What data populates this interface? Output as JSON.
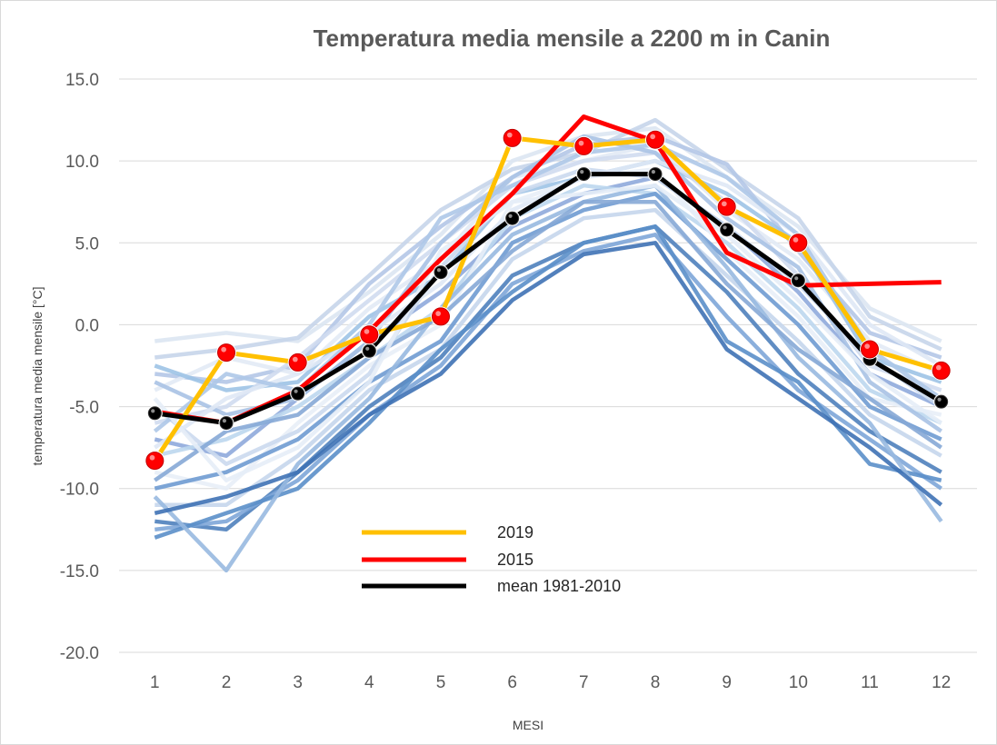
{
  "chart_data": {
    "type": "line",
    "title": "Temperatura media mensile a 2200 m in Canin",
    "xlabel": "MESI",
    "ylabel": "temperatura media mensile [°C]",
    "ylim": [
      -20,
      15
    ],
    "yticks": [
      "15.0",
      "10.0",
      "5.0",
      "0.0",
      "-5.0",
      "-10.0",
      "-15.0",
      "-20.0"
    ],
    "ytick_values": [
      15,
      10,
      5,
      0,
      -5,
      -10,
      -15,
      -20
    ],
    "categories": [
      "1",
      "2",
      "3",
      "4",
      "5",
      "6",
      "7",
      "8",
      "9",
      "10",
      "11",
      "12"
    ],
    "grid": true,
    "legend_position": "lower-center",
    "highlight_series": [
      {
        "name": "2019",
        "color": "#ffc000",
        "markers": true,
        "values": [
          -8.3,
          -1.7,
          -2.3,
          -0.6,
          0.5,
          11.4,
          10.9,
          11.3,
          7.2,
          5.0,
          -1.5,
          -2.8
        ]
      },
      {
        "name": "2015",
        "color": "#ff0000",
        "markers": false,
        "values": [
          -5.3,
          -6.0,
          -4.0,
          -0.4,
          4.0,
          8.0,
          12.7,
          11.2,
          4.4,
          2.4,
          2.5,
          2.6
        ]
      },
      {
        "name": "mean 1981-2010",
        "color": "#000000",
        "markers": true,
        "values": [
          -5.4,
          -6.0,
          -4.2,
          -1.6,
          3.2,
          6.5,
          9.2,
          9.2,
          5.8,
          2.7,
          -2.1,
          -4.7
        ]
      }
    ],
    "background_series": [
      {
        "color": "#dce6f2",
        "values": [
          -1.0,
          -0.5,
          -1.0,
          2.0,
          5.5,
          10.0,
          11.5,
          12.0,
          9.0,
          6.0,
          1.0,
          -1.0
        ]
      },
      {
        "color": "#c6d5ea",
        "values": [
          -2.0,
          -1.5,
          -0.8,
          3.0,
          7.0,
          9.5,
          10.5,
          12.5,
          9.5,
          6.5,
          0.5,
          -1.5
        ]
      },
      {
        "color": "#b4c7e7",
        "values": [
          -3.0,
          -3.5,
          -2.5,
          2.5,
          6.0,
          9.0,
          11.0,
          11.5,
          9.8,
          4.5,
          -0.5,
          -2.0
        ]
      },
      {
        "color": "#e2eaf5",
        "values": [
          -4.0,
          -2.0,
          -3.0,
          1.0,
          4.0,
          9.0,
          10.0,
          11.0,
          7.0,
          4.0,
          -1.0,
          -3.0
        ]
      },
      {
        "color": "#9dc3e6",
        "values": [
          -2.5,
          -4.0,
          -3.5,
          0.5,
          3.0,
          8.0,
          9.0,
          10.0,
          8.0,
          5.0,
          -2.0,
          -3.5
        ]
      },
      {
        "color": "#d0dcef",
        "values": [
          -6.0,
          -5.0,
          -2.0,
          1.5,
          5.0,
          8.5,
          10.0,
          10.5,
          7.5,
          3.0,
          -2.5,
          -4.0
        ]
      },
      {
        "color": "#8faadc",
        "values": [
          -7.0,
          -8.0,
          -4.5,
          -1.0,
          2.0,
          6.0,
          8.0,
          9.0,
          6.0,
          2.0,
          -3.0,
          -5.0
        ]
      },
      {
        "color": "#bdd7ee",
        "values": [
          -8.0,
          -7.0,
          -5.0,
          -2.0,
          1.0,
          6.5,
          8.5,
          8.0,
          5.0,
          1.0,
          -4.0,
          -6.0
        ]
      },
      {
        "color": "#e8eef7",
        "values": [
          -9.0,
          -10.0,
          -6.0,
          -2.5,
          0.0,
          7.5,
          9.0,
          9.5,
          4.5,
          0.5,
          -4.5,
          -5.5
        ]
      },
      {
        "color": "#6f9bd1",
        "values": [
          -10.0,
          -9.0,
          -7.0,
          -3.5,
          -1.0,
          5.0,
          7.0,
          8.0,
          4.0,
          0.0,
          -5.0,
          -7.0
        ]
      },
      {
        "color": "#c5d6ec",
        "values": [
          -11.0,
          -11.0,
          -8.0,
          -4.0,
          -1.5,
          4.0,
          6.5,
          7.0,
          3.0,
          -1.0,
          -5.5,
          -8.0
        ]
      },
      {
        "color": "#4f81bd",
        "values": [
          -12.0,
          -12.5,
          -9.0,
          -5.0,
          -2.0,
          3.0,
          5.0,
          6.0,
          2.0,
          -3.0,
          -6.5,
          -9.0
        ]
      },
      {
        "color": "#7ea6d8",
        "values": [
          -12.5,
          -12.0,
          -9.5,
          -5.5,
          -2.5,
          2.5,
          4.5,
          5.5,
          0.5,
          -4.0,
          -7.0,
          -10.0
        ]
      },
      {
        "color": "#5b8fc9",
        "values": [
          -13.0,
          -11.5,
          -10.0,
          -6.0,
          -1.5,
          2.0,
          5.0,
          6.0,
          -1.0,
          -3.5,
          -8.5,
          -9.5
        ]
      },
      {
        "color": "#98b9e0",
        "values": [
          -10.5,
          -15.0,
          -8.5,
          -4.5,
          1.0,
          5.5,
          7.5,
          8.5,
          3.5,
          -2.0,
          -6.0,
          -12.0
        ]
      },
      {
        "color": "#a9c2e4",
        "values": [
          -3.5,
          -5.5,
          -4.5,
          -1.0,
          5.0,
          9.0,
          11.5,
          10.5,
          6.5,
          3.5,
          -3.5,
          -6.5
        ]
      },
      {
        "color": "#cbd9ee",
        "values": [
          -5.0,
          -8.5,
          -6.5,
          -3.0,
          3.5,
          8.0,
          9.5,
          9.0,
          6.0,
          2.5,
          -2.0,
          -5.0
        ]
      },
      {
        "color": "#dfe8f5",
        "values": [
          -7.5,
          -4.5,
          -3.0,
          -0.5,
          2.5,
          7.0,
          9.0,
          10.0,
          8.5,
          5.5,
          0.0,
          -2.5
        ]
      },
      {
        "color": "#86a8d6",
        "values": [
          -9.5,
          -6.5,
          -5.5,
          -2.0,
          0.5,
          4.5,
          7.5,
          7.5,
          2.5,
          -1.5,
          -4.5,
          -7.5
        ]
      },
      {
        "color": "#aec8e8",
        "values": [
          -6.5,
          -3.0,
          -4.0,
          0.0,
          6.5,
          8.5,
          10.5,
          11.0,
          9.0,
          5.5,
          -1.5,
          -4.5
        ]
      },
      {
        "color": "#3f72b5",
        "values": [
          -11.5,
          -10.5,
          -9.0,
          -5.5,
          -3.0,
          1.5,
          4.3,
          5.0,
          -1.5,
          -4.5,
          -7.5,
          -11.0
        ]
      },
      {
        "color": "#e6edf7",
        "values": [
          -4.5,
          -9.5,
          -7.5,
          -3.5,
          4.5,
          7.5,
          8.0,
          8.5,
          5.5,
          1.5,
          -3.0,
          -6.0
        ]
      }
    ]
  }
}
